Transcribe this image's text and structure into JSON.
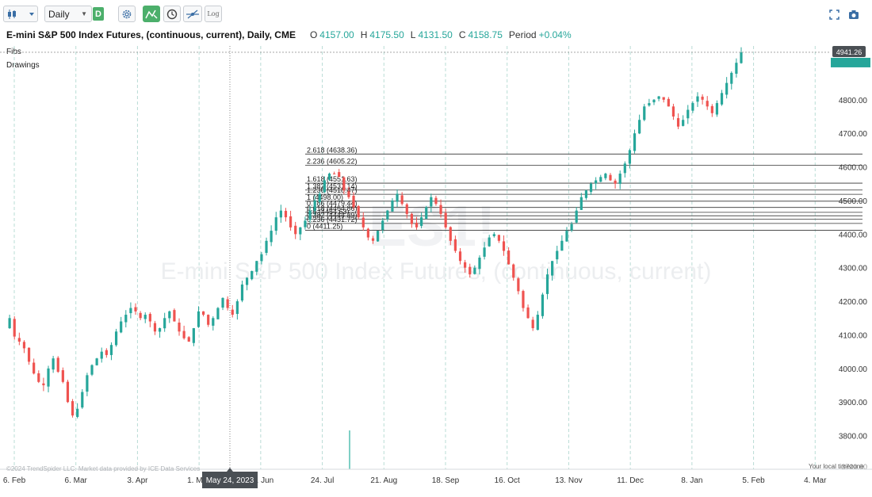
{
  "toolbar": {
    "interval": "Daily",
    "interval_badge": "D",
    "log_label": "Log",
    "icons": [
      "candlestick-icon",
      "chevron-down-icon",
      "gear-icon",
      "indicator-icon",
      "clock-icon",
      "drawing-tool-icon",
      "log-scale-icon",
      "fullscreen-icon",
      "camera-icon"
    ]
  },
  "header": {
    "symbol": "E-mini S&P 500 Index Futures, (continuous, current), Daily, CME",
    "open_label": "O",
    "open": "4157.00",
    "high_label": "H",
    "high": "4175.50",
    "low_label": "L",
    "low": "4131.50",
    "close_label": "C",
    "close": "4158.75",
    "period_label": "Period",
    "period": "+0.04%"
  },
  "panels": {
    "fibs": "Fibs",
    "drawings": "Drawings"
  },
  "watermark": {
    "ticker": "ES1!",
    "name": "E-mini S&P 500 Index Futures, (continuous, current)"
  },
  "footer": {
    "copyright": "©2024 TrendSpider LLC. Market data provided by ICE Data Services",
    "timezone": "Your local timezone",
    "crosshair_date": "May 24, 2023"
  },
  "colors": {
    "up": "#26a69a",
    "down": "#ef5350",
    "accent": "#4caf6b",
    "price_tag": "#26a69a"
  },
  "chart_data": {
    "type": "candlestick",
    "x_ticks": [
      "6. Feb",
      "6. Mar",
      "3. Apr",
      "1. May",
      "26. Jun",
      "24. Jul",
      "21. Aug",
      "18. Sep",
      "16. Oct",
      "13. Nov",
      "11. Dec",
      "8. Jan",
      "5. Feb",
      "4. Mar"
    ],
    "y_ticks": [
      3800,
      3900,
      4000,
      4100,
      4200,
      4300,
      4400,
      4500,
      4600,
      4700,
      4800
    ],
    "ylim": [
      3700,
      4960
    ],
    "bottom_tick_label": "3700.00",
    "last_price": "4941.26",
    "fib_levels": [
      {
        "ratio": "2.618",
        "price": 4638.36
      },
      {
        "ratio": "2.236",
        "price": 4605.22
      },
      {
        "ratio": "1.618",
        "price": 4551.63
      },
      {
        "ratio": "1.382",
        "price": 4531.14
      },
      {
        "ratio": "1.236",
        "price": 4518.47
      },
      {
        "ratio": "1",
        "price": 4498.0
      },
      {
        "ratio": "0.786",
        "price": 4479.44
      },
      {
        "ratio": "0.618",
        "price": 4464.86
      },
      {
        "ratio": "0.5",
        "price": 4454.63
      },
      {
        "ratio": "0.382",
        "price": 4444.39
      },
      {
        "ratio": "0.236",
        "price": 4431.72
      },
      {
        "ratio": "0",
        "price": 4411.25
      }
    ],
    "price_path": [
      4120,
      4150,
      4095,
      4080,
      4060,
      4020,
      3985,
      3960,
      3950,
      4000,
      4030,
      3990,
      3960,
      3900,
      3860,
      3880,
      3930,
      3980,
      4010,
      4030,
      4050,
      4040,
      4070,
      4110,
      4140,
      4160,
      4180,
      4170,
      4150,
      4160,
      4140,
      4110,
      4120,
      4150,
      4170,
      4140,
      4110,
      4090,
      4080,
      4120,
      4170,
      4160,
      4130,
      4150,
      4180,
      4210,
      4180,
      4160,
      4200,
      4250,
      4270,
      4290,
      4320,
      4340,
      4380,
      4410,
      4450,
      4470,
      4450,
      4420,
      4400,
      4420,
      4440,
      4470,
      4500,
      4520,
      4560,
      4580,
      4580,
      4570,
      4530,
      4510,
      4480,
      4450,
      4420,
      4390,
      4380,
      4410,
      4440,
      4470,
      4500,
      4520,
      4490,
      4460,
      4430,
      4420,
      4450,
      4480,
      4510,
      4490,
      4460,
      4420,
      4380,
      4350,
      4320,
      4300,
      4280,
      4300,
      4330,
      4360,
      4390,
      4400,
      4380,
      4350,
      4310,
      4270,
      4230,
      4180,
      4150,
      4120,
      4160,
      4220,
      4280,
      4320,
      4350,
      4380,
      4410,
      4430,
      4470,
      4510,
      4530,
      4550,
      4560,
      4570,
      4580,
      4560,
      4550,
      4580,
      4610,
      4650,
      4700,
      4740,
      4780,
      4790,
      4800,
      4810,
      4800,
      4780,
      4750,
      4720,
      4740,
      4770,
      4790,
      4810,
      4800,
      4780,
      4760,
      4790,
      4820,
      4850,
      4880,
      4910,
      4941
    ]
  }
}
